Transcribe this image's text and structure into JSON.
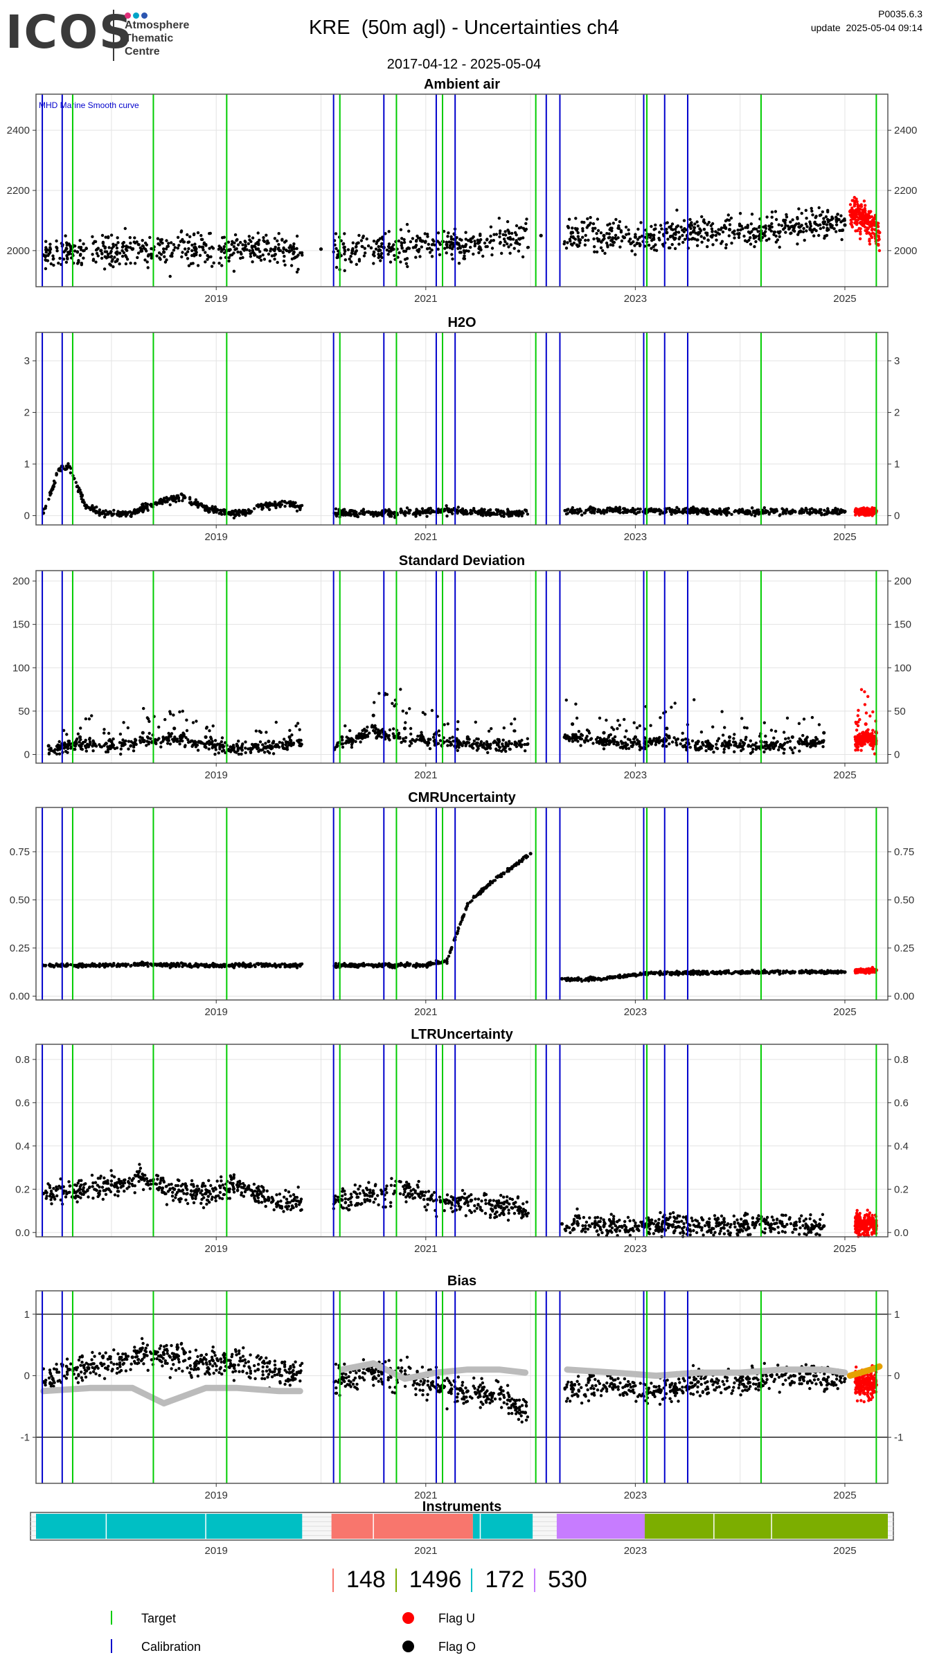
{
  "header": {
    "logo_text": "ICOS",
    "logo_sub1": "Atmosphere",
    "logo_sub2": "Thematic",
    "logo_sub3": "Centre",
    "logo_dot_colors": [
      "#e0307a",
      "#00a3c7",
      "#2b55b0"
    ],
    "title": "KRE  (50m agl) - Uncertainties ch4",
    "date_range": "2017-04-12 - 2025-05-04",
    "version": "P0035.6.3",
    "update": "update  2025-05-04 09:14"
  },
  "colors": {
    "target_line": "#00cc00",
    "calibration_line": "#0000cc",
    "flag_o": "#000000",
    "flag_u": "#ff0000",
    "smooth_curve": "#bbbbbb",
    "smooth_curve_recent": "#e6a100",
    "frame": "#555555",
    "grid": "#e3e3e3"
  },
  "chart_data": [
    {
      "type": "scatter",
      "title": "Ambient air",
      "annotation": "MHD Marine Smooth curve",
      "xlim": [
        2017.28,
        2025.41
      ],
      "ylim": [
        1880,
        2520
      ],
      "yticks": [
        2000,
        2200,
        2400
      ],
      "ytick_labels": [
        "2000",
        "2200",
        "2400"
      ],
      "xticks": [
        2019,
        2021,
        2023,
        2025
      ],
      "xtick_labels": [
        "2019",
        "2021",
        "2023",
        "2025"
      ],
      "series": [
        {
          "marker": "dot",
          "color": "#000000",
          "x": [
            2017.35,
            2017.6,
            2017.9,
            2018.2,
            2018.5,
            2018.8,
            2019.1,
            2019.4,
            2019.7,
            2020.0,
            2020.3,
            2020.6,
            2020.9,
            2021.2,
            2021.5,
            2021.8,
            2022.1,
            2022.4,
            2022.7,
            2023.0,
            2023.3,
            2023.6,
            2023.9,
            2024.2,
            2024.5,
            2024.8,
            2025.0
          ],
          "y": [
            1985,
            1990,
            2000,
            2005,
            1995,
            2010,
            2000,
            2005,
            1998,
            2005,
            2000,
            2010,
            2012,
            2020,
            2025,
            2040,
            2050,
            2060,
            2050,
            2045,
            2060,
            2055,
            2070,
            2065,
            2080,
            2090,
            2085
          ]
        },
        {
          "marker": "dot",
          "color": "#ff0000",
          "x": [
            2025.05,
            2025.15,
            2025.25,
            2025.33
          ],
          "y": [
            2130,
            2110,
            2090,
            2060
          ]
        }
      ],
      "segments": [
        [
          2017.28,
          2019.82
        ],
        [
          2020.12,
          2021.98
        ],
        [
          2022.32,
          2025.35
        ]
      ],
      "calibration_x": [
        2017.34,
        2017.53,
        2020.12,
        2020.6,
        2021.1,
        2021.28,
        2022.15,
        2022.28,
        2023.08,
        2023.28,
        2023.5
      ],
      "target_x": [
        2017.63,
        2018.4,
        2019.1,
        2020.18,
        2020.72,
        2021.16,
        2022.05,
        2023.11,
        2024.2,
        2025.3
      ]
    },
    {
      "type": "scatter",
      "title": "H2O",
      "xlim": [
        2017.28,
        2025.41
      ],
      "ylim": [
        -0.18,
        3.55
      ],
      "yticks": [
        0,
        1,
        2,
        3
      ],
      "ytick_labels": [
        "0",
        "1",
        "2",
        "3"
      ],
      "xticks": [
        2019,
        2021,
        2023,
        2025
      ],
      "xtick_labels": [
        "2019",
        "2021",
        "2023",
        "2025"
      ],
      "series": [
        {
          "marker": "dot",
          "color": "#000000",
          "x": [
            2017.35,
            2017.5,
            2017.6,
            2017.75,
            2017.9,
            2018.2,
            2018.5,
            2018.7,
            2018.9,
            2019.2,
            2019.5,
            2019.7,
            2019.8,
            2020.2,
            2020.6,
            2021.0,
            2021.3,
            2021.6,
            2021.9,
            2022.4,
            2022.8,
            2023.2,
            2023.6,
            2024.0,
            2024.5,
            2024.9,
            2025.0
          ],
          "y": [
            0.05,
            0.9,
            0.95,
            0.2,
            0.05,
            0.05,
            0.3,
            0.35,
            0.15,
            0.03,
            0.2,
            0.25,
            0.15,
            0.05,
            0.05,
            0.06,
            0.1,
            0.05,
            0.05,
            0.1,
            0.1,
            0.1,
            0.08,
            0.08,
            0.08,
            0.08,
            0.08
          ]
        },
        {
          "marker": "dot",
          "color": "#ff0000",
          "x": [
            2025.1,
            2025.2,
            2025.3
          ],
          "y": [
            0.08,
            0.08,
            0.09
          ]
        }
      ],
      "segments": [
        [
          2017.28,
          2019.82
        ],
        [
          2020.12,
          2021.98
        ],
        [
          2022.32,
          2025.35
        ]
      ],
      "calibration_x": [
        2017.34,
        2017.53,
        2020.12,
        2020.6,
        2021.1,
        2021.28,
        2022.15,
        2022.28,
        2023.08,
        2023.28,
        2023.5
      ],
      "target_x": [
        2017.63,
        2018.4,
        2019.1,
        2020.18,
        2020.72,
        2021.16,
        2022.05,
        2023.11,
        2024.2,
        2025.3
      ]
    },
    {
      "type": "scatter",
      "title": "Standard Deviation",
      "xlim": [
        2017.28,
        2025.41
      ],
      "ylim": [
        -10,
        212
      ],
      "yticks": [
        0,
        50,
        100,
        150,
        200
      ],
      "ytick_labels": [
        "0",
        "50",
        "100",
        "150",
        "200"
      ],
      "xticks": [
        2019,
        2021,
        2023,
        2025
      ],
      "xtick_labels": [
        "2019",
        "2021",
        "2023",
        "2025"
      ],
      "series": [
        {
          "marker": "dot",
          "color": "#000000",
          "x": [
            2017.4,
            2017.7,
            2018.0,
            2018.3,
            2018.6,
            2018.9,
            2019.2,
            2019.5,
            2019.7,
            2020.2,
            2020.5,
            2020.8,
            2021.1,
            2021.4,
            2021.7,
            2022.4,
            2022.7,
            2023.0,
            2023.3,
            2023.6,
            2023.9,
            2024.2,
            2024.5,
            2024.8
          ],
          "y": [
            10,
            20,
            15,
            25,
            30,
            20,
            10,
            15,
            20,
            20,
            45,
            30,
            25,
            20,
            15,
            35,
            25,
            20,
            30,
            15,
            20,
            15,
            20,
            25
          ]
        },
        {
          "marker": "dot",
          "color": "#ff0000",
          "x": [
            2025.1,
            2025.2,
            2025.3
          ],
          "y": [
            20,
            35,
            25
          ]
        }
      ],
      "segments": [
        [
          2017.28,
          2019.82
        ],
        [
          2020.12,
          2021.98
        ],
        [
          2022.32,
          2025.35
        ]
      ],
      "calibration_x": [
        2017.34,
        2017.53,
        2020.12,
        2020.6,
        2021.1,
        2021.28,
        2022.15,
        2022.28,
        2023.08,
        2023.28,
        2023.5
      ],
      "target_x": [
        2017.63,
        2018.4,
        2019.1,
        2020.18,
        2020.72,
        2021.16,
        2022.05,
        2023.11,
        2024.2,
        2025.3
      ]
    },
    {
      "type": "scatter",
      "title": "CMRUncertainty",
      "xlim": [
        2017.28,
        2025.41
      ],
      "ylim": [
        -0.02,
        0.98
      ],
      "yticks": [
        0,
        0.25,
        0.5,
        0.75
      ],
      "ytick_labels": [
        "0.00",
        "0.25",
        "0.50",
        "0.75"
      ],
      "xticks": [
        2019,
        2021,
        2023,
        2025
      ],
      "xtick_labels": [
        "2019",
        "2021",
        "2023",
        "2025"
      ],
      "series": [
        {
          "marker": "dot",
          "color": "#000000",
          "x": [
            2017.35,
            2017.8,
            2018.3,
            2018.8,
            2019.3,
            2019.8,
            2020.2,
            2020.6,
            2021.0,
            2021.2,
            2021.4,
            2021.6,
            2021.8,
            2022.0,
            2022.3,
            2022.7,
            2023.1,
            2023.5,
            2024.0,
            2024.5,
            2025.0
          ],
          "y": [
            0.16,
            0.16,
            0.165,
            0.16,
            0.16,
            0.16,
            0.16,
            0.16,
            0.16,
            0.18,
            0.48,
            0.58,
            0.66,
            0.74,
            0.09,
            0.09,
            0.12,
            0.12,
            0.125,
            0.125,
            0.125
          ]
        },
        {
          "marker": "dot",
          "color": "#ff0000",
          "x": [
            2025.1,
            2025.2,
            2025.3
          ],
          "y": [
            0.13,
            0.13,
            0.135
          ]
        }
      ],
      "segments": [
        [
          2017.28,
          2019.82
        ],
        [
          2020.12,
          2021.98
        ],
        [
          2022.32,
          2025.35
        ]
      ],
      "calibration_x": [
        2017.34,
        2017.53,
        2020.12,
        2020.6,
        2021.1,
        2021.28,
        2022.15,
        2022.28,
        2023.08,
        2023.28,
        2023.5
      ],
      "target_x": [
        2017.63,
        2018.4,
        2019.1,
        2020.18,
        2020.72,
        2021.16,
        2022.05,
        2023.11,
        2024.2,
        2025.3
      ]
    },
    {
      "type": "scatter",
      "title": "LTRUncertainty",
      "xlim": [
        2017.28,
        2025.41
      ],
      "ylim": [
        -0.02,
        0.87
      ],
      "yticks": [
        0,
        0.2,
        0.4,
        0.6,
        0.8
      ],
      "ytick_labels": [
        "0.0",
        "0.2",
        "0.4",
        "0.6",
        "0.8"
      ],
      "xticks": [
        2019,
        2021,
        2023,
        2025
      ],
      "xtick_labels": [
        "2019",
        "2021",
        "2023",
        "2025"
      ],
      "series": [
        {
          "marker": "dot",
          "color": "#000000",
          "x": [
            2017.35,
            2017.7,
            2018.0,
            2018.3,
            2018.6,
            2018.9,
            2019.2,
            2019.5,
            2019.8,
            2020.2,
            2020.5,
            2020.8,
            2021.1,
            2021.4,
            2021.7,
            2021.95,
            2022.3,
            2022.7,
            2023.0,
            2023.3,
            2023.6,
            2024.0,
            2024.4,
            2024.8
          ],
          "y": [
            0.18,
            0.2,
            0.22,
            0.25,
            0.2,
            0.18,
            0.22,
            0.15,
            0.14,
            0.15,
            0.18,
            0.2,
            0.15,
            0.14,
            0.12,
            0.1,
            0.04,
            0.03,
            0.03,
            0.04,
            0.03,
            0.03,
            0.04,
            0.03
          ]
        },
        {
          "marker": "dot",
          "color": "#ff0000",
          "x": [
            2025.1,
            2025.2,
            2025.3
          ],
          "y": [
            0.03,
            0.04,
            0.03
          ]
        }
      ],
      "segments": [
        [
          2017.28,
          2019.82
        ],
        [
          2020.12,
          2021.98
        ],
        [
          2022.32,
          2025.35
        ]
      ],
      "calibration_x": [
        2017.34,
        2017.53,
        2020.12,
        2020.6,
        2021.1,
        2021.28,
        2022.15,
        2022.28,
        2023.08,
        2023.28,
        2023.5
      ],
      "target_x": [
        2017.63,
        2018.4,
        2019.1,
        2020.18,
        2020.72,
        2021.16,
        2022.05,
        2023.11,
        2024.2,
        2025.3
      ]
    },
    {
      "type": "scatter",
      "title": "Bias",
      "xlim": [
        2017.28,
        2025.41
      ],
      "ylim": [
        -1.75,
        1.38
      ],
      "yticks": [
        -1,
        0,
        1
      ],
      "ytick_labels": [
        "-1",
        "0",
        "1"
      ],
      "reference_lines_y": [
        -1,
        1
      ],
      "xticks": [
        2019,
        2021,
        2023,
        2025
      ],
      "xtick_labels": [
        "2019",
        "2021",
        "2023",
        "2025"
      ],
      "series": [
        {
          "marker": "dot",
          "color": "#000000",
          "x": [
            2017.35,
            2017.6,
            2017.9,
            2018.2,
            2018.5,
            2018.8,
            2019.1,
            2019.4,
            2019.7,
            2020.2,
            2020.5,
            2020.8,
            2021.1,
            2021.4,
            2021.7,
            2021.95,
            2022.4,
            2022.8,
            2023.2,
            2023.6,
            2024.0,
            2024.4,
            2024.8,
            2025.0
          ],
          "y": [
            -0.1,
            0.1,
            0.2,
            0.3,
            0.35,
            0.2,
            0.25,
            0.1,
            0.05,
            -0.05,
            0.05,
            0.0,
            -0.2,
            -0.25,
            -0.3,
            -0.6,
            -0.15,
            -0.15,
            -0.25,
            -0.1,
            -0.1,
            0.0,
            -0.05,
            -0.05
          ]
        },
        {
          "marker": "dot",
          "color": "#ff0000",
          "x": [
            2025.1,
            2025.2,
            2025.3
          ],
          "y": [
            -0.1,
            -0.12,
            -0.15
          ]
        },
        {
          "marker": "line",
          "color": "#bbbbbb",
          "x": [
            2017.35,
            2017.8,
            2018.2,
            2018.5,
            2018.9,
            2019.2,
            2019.6,
            2019.8,
            2020.2,
            2020.5,
            2020.8,
            2021.1,
            2021.4,
            2021.7,
            2021.95,
            2022.35,
            2022.8,
            2023.2,
            2023.6,
            2024.0,
            2024.4,
            2024.8,
            2025.0
          ],
          "y": [
            -0.25,
            -0.2,
            -0.2,
            -0.45,
            -0.2,
            -0.2,
            -0.25,
            -0.25,
            0.1,
            0.2,
            -0.05,
            0.05,
            0.1,
            0.1,
            0.05,
            0.1,
            0.05,
            0.0,
            0.05,
            0.05,
            0.1,
            0.1,
            0.05
          ]
        },
        {
          "marker": "line",
          "color": "#e6a100",
          "x": [
            2025.05,
            2025.15,
            2025.25,
            2025.33
          ],
          "y": [
            0.0,
            0.05,
            0.1,
            0.15
          ]
        }
      ],
      "segments": [
        [
          2017.28,
          2019.82
        ],
        [
          2020.12,
          2021.98
        ],
        [
          2022.32,
          2025.35
        ]
      ],
      "calibration_x": [
        2017.34,
        2017.53,
        2020.12,
        2020.6,
        2021.1,
        2021.28,
        2022.15,
        2022.28,
        2023.08,
        2023.28,
        2023.5
      ],
      "target_x": [
        2017.63,
        2018.4,
        2019.1,
        2020.18,
        2020.72,
        2021.16,
        2022.05,
        2023.11,
        2024.2,
        2025.3
      ]
    },
    {
      "type": "bar",
      "title": "Instruments",
      "xlim": [
        2017.28,
        2025.41
      ],
      "xticks": [
        2019,
        2021,
        2023,
        2025
      ],
      "xtick_labels": [
        "2019",
        "2021",
        "2023",
        "2025"
      ],
      "intervals": [
        {
          "id": "172",
          "start": 2017.28,
          "end": 2019.82,
          "color": "#00bfc4"
        },
        {
          "id": "148",
          "start": 2020.1,
          "end": 2021.45,
          "color": "#f8766d"
        },
        {
          "id": "172",
          "start": 2021.45,
          "end": 2022.02,
          "color": "#00bfc4"
        },
        {
          "id": "530",
          "start": 2022.25,
          "end": 2023.09,
          "color": "#c77cff"
        },
        {
          "id": "1496",
          "start": 2023.09,
          "end": 2025.41,
          "color": "#7cae00"
        }
      ]
    }
  ],
  "instrument_legend": [
    {
      "id": "148",
      "color": "#f8766d"
    },
    {
      "id": "1496",
      "color": "#7cae00"
    },
    {
      "id": "172",
      "color": "#00bfc4"
    },
    {
      "id": "530",
      "color": "#c77cff"
    }
  ],
  "legend": {
    "target": "Target",
    "calibration": "Calibration",
    "flag_u": "Flag U",
    "flag_o": "Flag O"
  }
}
